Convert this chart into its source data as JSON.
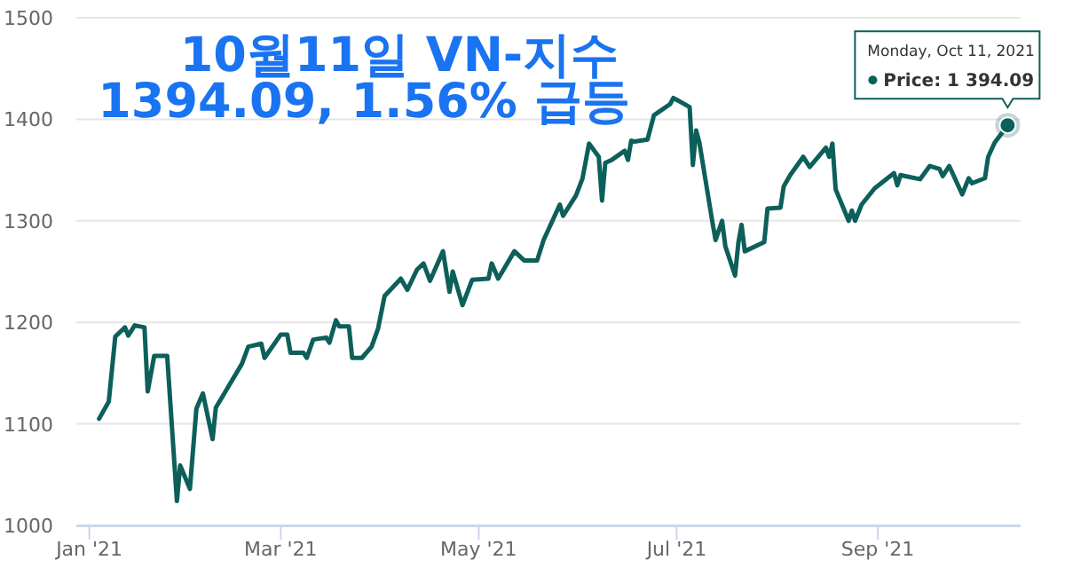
{
  "chart_data": {
    "type": "line",
    "title": "10월11일 VN-지수",
    "subtitle": "1394.09, 1.56% 급등",
    "annotations": [
      {
        "text": "Monday, Oct 11, 2021\nPrice: 1 394.09",
        "x": "2021-10-11",
        "y": 1394.09
      }
    ],
    "x": [
      "2021-01-04",
      "2021-01-07",
      "2021-01-09",
      "2021-01-12",
      "2021-01-13",
      "2021-01-15",
      "2021-01-18",
      "2021-01-19",
      "2021-01-21",
      "2021-01-25",
      "2021-01-28",
      "2021-01-29",
      "2021-02-01",
      "2021-02-03",
      "2021-02-05",
      "2021-02-08",
      "2021-02-09",
      "2021-02-17",
      "2021-02-19",
      "2021-02-23",
      "2021-02-24",
      "2021-03-01",
      "2021-03-03",
      "2021-03-04",
      "2021-03-08",
      "2021-03-09",
      "2021-03-11",
      "2021-03-15",
      "2021-03-16",
      "2021-03-18",
      "2021-03-19",
      "2021-03-22",
      "2021-03-23",
      "2021-03-26",
      "2021-03-29",
      "2021-03-31",
      "2021-04-02",
      "2021-04-07",
      "2021-04-09",
      "2021-04-12",
      "2021-04-14",
      "2021-04-16",
      "2021-04-20",
      "2021-04-22",
      "2021-04-23",
      "2021-04-26",
      "2021-04-29",
      "2021-05-04",
      "2021-05-05",
      "2021-05-07",
      "2021-05-12",
      "2021-05-15",
      "2021-05-19",
      "2021-05-21",
      "2021-05-26",
      "2021-05-27",
      "2021-05-31",
      "2021-06-02",
      "2021-06-04",
      "2021-06-07",
      "2021-06-08",
      "2021-06-09",
      "2021-06-11",
      "2021-06-15",
      "2021-06-16",
      "2021-06-17",
      "2021-06-18",
      "2021-06-22",
      "2021-06-24",
      "2021-06-29",
      "2021-06-30",
      "2021-07-05",
      "2021-07-06",
      "2021-07-07",
      "2021-07-08",
      "2021-07-12",
      "2021-07-13",
      "2021-07-15",
      "2021-07-16",
      "2021-07-19",
      "2021-07-20",
      "2021-07-21",
      "2021-07-22",
      "2021-07-28",
      "2021-07-29",
      "2021-08-02",
      "2021-08-03",
      "2021-08-05",
      "2021-08-09",
      "2021-08-11",
      "2021-08-16",
      "2021-08-17",
      "2021-08-18",
      "2021-08-19",
      "2021-08-23",
      "2021-08-24",
      "2021-08-25",
      "2021-08-27",
      "2021-08-31",
      "2021-09-06",
      "2021-09-07",
      "2021-09-08",
      "2021-09-14",
      "2021-09-17",
      "2021-09-20",
      "2021-09-21",
      "2021-09-23",
      "2021-09-27",
      "2021-09-29",
      "2021-09-30",
      "2021-10-04",
      "2021-10-05",
      "2021-10-07",
      "2021-10-11"
    ],
    "series": [
      {
        "color": "#0d5f5a",
        "values": [
          1105,
          1122,
          1186,
          1195,
          1187,
          1197,
          1195,
          1132,
          1167,
          1167,
          1024,
          1059,
          1036,
          1115,
          1130,
          1085,
          1116,
          1159,
          1176,
          1179,
          1165,
          1188,
          1188,
          1170,
          1170,
          1165,
          1183,
          1185,
          1180,
          1202,
          1196,
          1196,
          1165,
          1165,
          1176,
          1194,
          1226,
          1243,
          1232,
          1252,
          1258,
          1241,
          1270,
          1230,
          1250,
          1217,
          1242,
          1243,
          1258,
          1243,
          1270,
          1261,
          1261,
          1281,
          1316,
          1305,
          1325,
          1342,
          1376,
          1363,
          1320,
          1357,
          1360,
          1369,
          1360,
          1379,
          1378,
          1380,
          1404,
          1415,
          1421,
          1412,
          1355,
          1389,
          1377,
          1299,
          1281,
          1300,
          1275,
          1246,
          1278,
          1296,
          1270,
          1279,
          1312,
          1313,
          1334,
          1345,
          1363,
          1353,
          1372,
          1363,
          1376,
          1331,
          1300,
          1310,
          1300,
          1316,
          1332,
          1347,
          1335,
          1345,
          1341,
          1354,
          1351,
          1344,
          1354,
          1326,
          1342,
          1337,
          1342,
          1363,
          1377,
          1394.09
        ]
      }
    ],
    "xlim": [
      "2020-12-28",
      "2021-10-15"
    ],
    "xticks": [
      {
        "value": "2021-01-01",
        "label": "Jan '21"
      },
      {
        "value": "2021-03-01",
        "label": "Mar '21"
      },
      {
        "value": "2021-05-01",
        "label": "May '21"
      },
      {
        "value": "2021-07-01",
        "label": "Jul '21"
      },
      {
        "value": "2021-09-01",
        "label": "Sep '21"
      }
    ],
    "ylim": [
      1000,
      1500
    ],
    "yticks": [
      1000,
      1100,
      1200,
      1300,
      1400,
      1500
    ],
    "grid": "y",
    "line_style": "solid",
    "marker": "none"
  }
}
